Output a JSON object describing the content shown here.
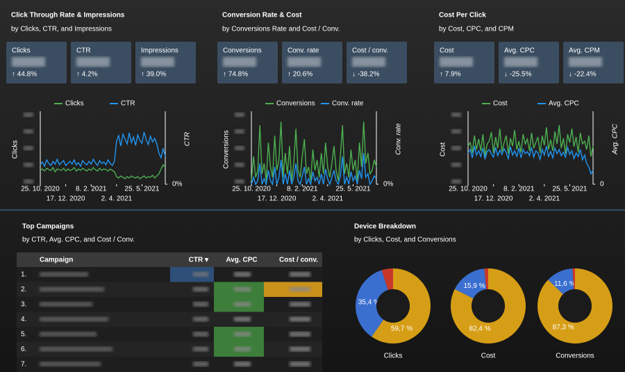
{
  "panels": [
    {
      "title": "Click Through Rate & Impressions",
      "subtitle": "by Clicks, CTR, and Impressions",
      "kpis": [
        {
          "label": "Clicks",
          "change": "↑ 44.8%",
          "color": "#6cc36c"
        },
        {
          "label": "CTR",
          "change": "↑ 4.2%",
          "color": "#6cc36c"
        },
        {
          "label": "Impressions",
          "change": "↑ 39.0%",
          "color": "#6cc36c"
        }
      ],
      "chart": {
        "type": "line",
        "ylim": [
          0,
          100
        ],
        "y2lim": [
          0,
          100
        ],
        "y2ticks": [
          {
            "value": 0,
            "label": "0%"
          }
        ],
        "ylabel": "Clicks",
        "y2label": "CTR",
        "xticks": [
          {
            "value": 0,
            "label": "25. 10. 2020"
          },
          {
            "value": 12,
            "label": "17. 12. 2020"
          },
          {
            "value": 24,
            "label": "8. 2. 2021"
          },
          {
            "value": 36,
            "label": "2. 4. 2021"
          },
          {
            "value": 48,
            "label": "25. 5. 2021"
          }
        ],
        "series": [
          {
            "name": "Clicks",
            "color": "#4caf50",
            "values": [
              20,
              22,
              19,
              23,
              21,
              20,
              24,
              18,
              22,
              21,
              20,
              23,
              19,
              22,
              20,
              21,
              24,
              19,
              22,
              20,
              23,
              21,
              19,
              22,
              20,
              24,
              21,
              19,
              23,
              20,
              22,
              21,
              19,
              22,
              20,
              18,
              11,
              9,
              12,
              10,
              8,
              11,
              9,
              12,
              10,
              9,
              11,
              8,
              10,
              12,
              9,
              11,
              10,
              13,
              9,
              12,
              15,
              22,
              28,
              24
            ]
          },
          {
            "name": "CTR",
            "color": "#2196f3",
            "axis": "y2",
            "values": [
              28,
              32,
              26,
              35,
              30,
              27,
              33,
              29,
              36,
              28,
              31,
              34,
              27,
              30,
              33,
              29,
              35,
              28,
              31,
              26,
              34,
              30,
              28,
              33,
              29,
              36,
              31,
              27,
              34,
              30,
              32,
              28,
              35,
              30,
              27,
              33,
              62,
              70,
              55,
              72,
              65,
              58,
              74,
              60,
              68,
              56,
              71,
              63,
              59,
              75,
              64,
              57,
              69,
              61,
              66,
              58,
              45,
              38,
              52,
              40
            ]
          }
        ]
      }
    },
    {
      "title": "Conversion Rate & Cost",
      "subtitle": "by Conversions Rate and Cost / Conv.",
      "kpis": [
        {
          "label": "Conversions",
          "change": "↑ 74.8%",
          "color": "#6cc36c"
        },
        {
          "label": "Conv. rate",
          "change": "↑ 20.6%",
          "color": "#6cc36c"
        },
        {
          "label": "Cost / conv.",
          "change": "↓ -38.2%",
          "color": "#6cc36c"
        }
      ],
      "chart": {
        "type": "line",
        "ylim": [
          0,
          100
        ],
        "y2lim": [
          0,
          100
        ],
        "y2ticks": [
          {
            "value": 0,
            "label": "0%"
          }
        ],
        "ylabel": "Conversions",
        "y2label": "Conv. rate",
        "xticks": [
          {
            "value": 0,
            "label": "25. 10. 2020"
          },
          {
            "value": 12,
            "label": "17. 12. 2020"
          },
          {
            "value": 24,
            "label": "8. 2. 2021"
          },
          {
            "value": 36,
            "label": "2. 4. 2021"
          },
          {
            "value": 48,
            "label": "25. 5. 2021"
          }
        ],
        "series": [
          {
            "name": "Conversions",
            "color": "#4caf50",
            "values": [
              5,
              40,
              10,
              20,
              85,
              15,
              30,
              5,
              60,
              25,
              10,
              70,
              20,
              35,
              90,
              10,
              45,
              15,
              55,
              5,
              30,
              80,
              20,
              10,
              40,
              65,
              15,
              25,
              5,
              50,
              20,
              35,
              10,
              45,
              15,
              60,
              25,
              10,
              30,
              55,
              20,
              5,
              40,
              85,
              15,
              30,
              10,
              50,
              20,
              35,
              5,
              60,
              25,
              90,
              30,
              45,
              15,
              20,
              35,
              25
            ]
          },
          {
            "name": "Conv. rate",
            "color": "#2196f3",
            "axis": "y2",
            "values": [
              0,
              10,
              0,
              5,
              30,
              0,
              8,
              0,
              20,
              5,
              0,
              25,
              0,
              10,
              35,
              0,
              15,
              0,
              20,
              0,
              10,
              30,
              5,
              0,
              12,
              25,
              0,
              8,
              0,
              18,
              5,
              10,
              0,
              15,
              0,
              22,
              8,
              0,
              10,
              20,
              5,
              0,
              12,
              40,
              0,
              10,
              0,
              18,
              5,
              12,
              0,
              20,
              8,
              45,
              10,
              15,
              0,
              5,
              12,
              8
            ]
          }
        ]
      }
    },
    {
      "title": "Cost Per Click",
      "subtitle": "by Cost, CPC, and CPM",
      "kpis": [
        {
          "label": "Cost",
          "change": "↑ 7.9%",
          "color": "#e25b5b"
        },
        {
          "label": "Avg. CPC",
          "change": "↓ -25.5%",
          "color": "#6cc36c"
        },
        {
          "label": "Avg. CPM",
          "change": "↓ -22.4%",
          "color": "#6cc36c"
        }
      ],
      "chart": {
        "type": "line",
        "ylim": [
          0,
          100
        ],
        "y2lim": [
          0,
          100
        ],
        "y2ticks": [
          0
        ],
        "ylabel": "Cost",
        "y2label": "Avg. CPC",
        "xticks": [
          {
            "value": 0,
            "label": "25. 10. 2020"
          },
          {
            "value": 12,
            "label": "17. 12. 2020"
          },
          {
            "value": 24,
            "label": "8. 2. 2021"
          },
          {
            "value": 36,
            "label": "2. 4. 2021"
          },
          {
            "value": 48,
            "label": "25. 5. 2021"
          }
        ],
        "series": [
          {
            "name": "Cost",
            "color": "#4caf50",
            "values": [
              55,
              60,
              45,
              70,
              50,
              65,
              48,
              72,
              40,
              58,
              62,
              75,
              45,
              68,
              52,
              80,
              47,
              60,
              70,
              44,
              66,
              55,
              78,
              50,
              62,
              46,
              72,
              58,
              65,
              48,
              74,
              52,
              60,
              68,
              45,
              70,
              56,
              82,
              50,
              64,
              48,
              76,
              58,
              85,
              52,
              66,
              44,
              72,
              60,
              80,
              54,
              68,
              46,
              74,
              58,
              62,
              50,
              70,
              40,
              55
            ]
          },
          {
            "name": "Avg. CPC",
            "color": "#2196f3",
            "axis": "y2",
            "values": [
              45,
              50,
              38,
              55,
              42,
              48,
              40,
              52,
              36,
              47,
              50,
              44,
              39,
              53,
              41,
              49,
              43,
              51,
              46,
              37,
              54,
              42,
              48,
              40,
              52,
              38,
              50,
              44,
              47,
              41,
              53,
              39,
              48,
              45,
              36,
              50,
              42,
              55,
              40,
              47,
              38,
              52,
              44,
              50,
              41,
              46,
              39,
              53,
              43,
              48,
              37,
              45,
              40,
              50,
              35,
              42,
              30,
              25,
              15,
              20
            ]
          }
        ]
      }
    }
  ],
  "campaigns": {
    "title": "Top Campaigns",
    "subtitle": "by CTR, Avg. CPC, and Cost / Conv.",
    "columns": [
      "Campaign",
      "CTR ▾",
      "Avg. CPC",
      "Cost / conv."
    ],
    "rows": [
      "1.",
      "2.",
      "3.",
      "4.",
      "5.",
      "6.",
      "7."
    ]
  },
  "devices": {
    "title": "Device Breakdown",
    "subtitle": "by Clicks, Cost, and Conversions",
    "charts": [
      {
        "type": "pie",
        "title": "Clicks",
        "values": [
          59.7,
          35.4,
          4.9
        ],
        "value_labels": [
          "59,7 %",
          "35,4 %",
          null
        ],
        "colors": [
          "#d69e16",
          "#3a6fd0",
          "#c8382a"
        ]
      },
      {
        "type": "pie",
        "title": "Cost",
        "values": [
          82.4,
          15.9,
          1.7
        ],
        "value_labels": [
          "82,4 %",
          "15,9 %",
          null
        ],
        "colors": [
          "#d69e16",
          "#3a6fd0",
          "#c8382a"
        ]
      },
      {
        "type": "pie",
        "title": "Conversions",
        "values": [
          87.3,
          11.6,
          1.1
        ],
        "value_labels": [
          "87,3 %",
          "11,6 %",
          null
        ],
        "colors": [
          "#d69e16",
          "#3a6fd0",
          "#c8382a"
        ]
      }
    ]
  }
}
